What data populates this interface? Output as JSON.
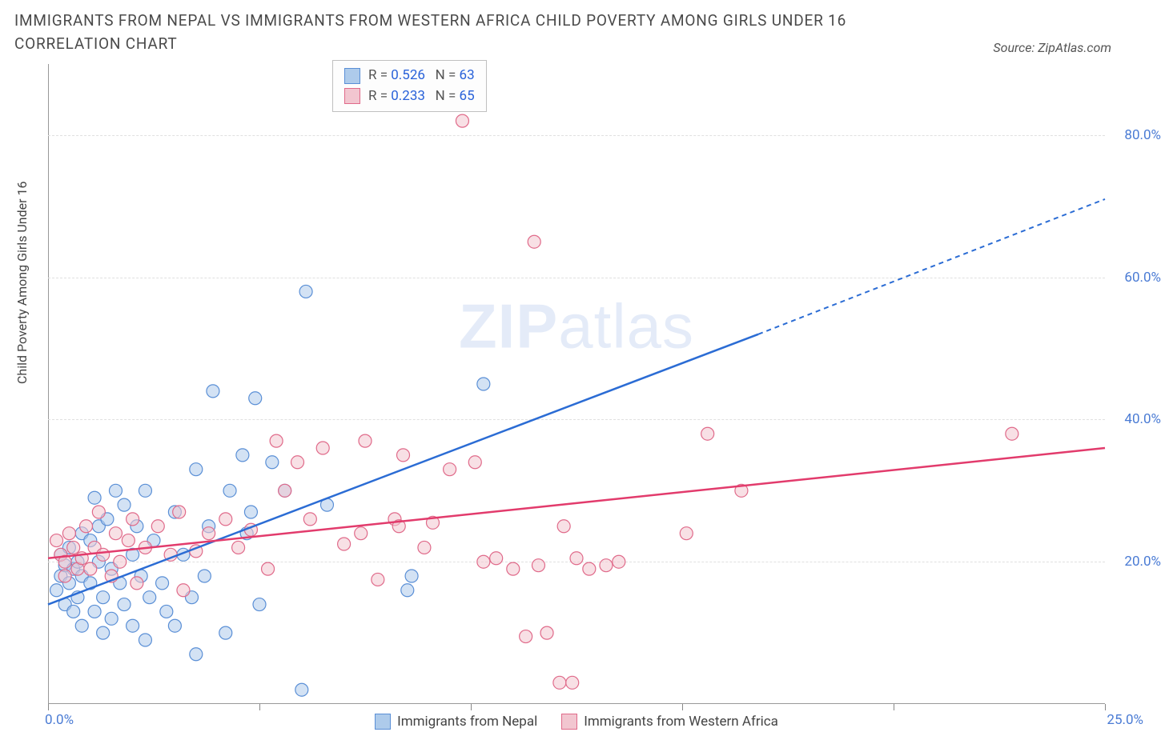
{
  "title": "IMMIGRANTS FROM NEPAL VS IMMIGRANTS FROM WESTERN AFRICA CHILD POVERTY AMONG GIRLS UNDER 16 CORRELATION CHART",
  "source_label": "Source: ZipAtlas.com",
  "y_axis_label": "Child Poverty Among Girls Under 16",
  "watermark": {
    "bold": "ZIP",
    "light": "atlas"
  },
  "chart": {
    "type": "scatter",
    "xlim": [
      0,
      25
    ],
    "ylim": [
      0,
      90
    ],
    "x_ticks": [
      0,
      5,
      10,
      15,
      20,
      25
    ],
    "y_ticks": [
      20,
      40,
      60,
      80
    ],
    "y_tick_labels": [
      "20.0%",
      "40.0%",
      "60.0%",
      "80.0%"
    ],
    "x_corner_left": "0.0%",
    "x_corner_right": "25.0%",
    "grid_color": "#e0e0e0",
    "background_color": "#ffffff",
    "marker_radius": 8,
    "marker_opacity": 0.55,
    "series": [
      {
        "name": "Immigrants from Nepal",
        "color_fill": "#aecbeb",
        "color_stroke": "#5a8fd6",
        "line_color": "#2b6cd4",
        "R": "0.526",
        "N": "63",
        "trend": {
          "x1": 0,
          "y1": 14,
          "x2_solid": 16.8,
          "y2_solid": 52,
          "x2_dash": 25,
          "y2_dash": 71
        },
        "points": [
          [
            0.2,
            16
          ],
          [
            0.3,
            21
          ],
          [
            0.3,
            18
          ],
          [
            0.4,
            19.5
          ],
          [
            0.4,
            14
          ],
          [
            0.5,
            17
          ],
          [
            0.5,
            22
          ],
          [
            0.6,
            19
          ],
          [
            0.6,
            13
          ],
          [
            0.7,
            20
          ],
          [
            0.7,
            15
          ],
          [
            0.8,
            24
          ],
          [
            0.8,
            18
          ],
          [
            0.8,
            11
          ],
          [
            1.0,
            17
          ],
          [
            1.0,
            23
          ],
          [
            1.1,
            29
          ],
          [
            1.1,
            13
          ],
          [
            1.2,
            20
          ],
          [
            1.2,
            25
          ],
          [
            1.3,
            10
          ],
          [
            1.3,
            15
          ],
          [
            1.4,
            26
          ],
          [
            1.5,
            19
          ],
          [
            1.5,
            12
          ],
          [
            1.6,
            30
          ],
          [
            1.7,
            17
          ],
          [
            1.8,
            14
          ],
          [
            1.8,
            28
          ],
          [
            2.0,
            21
          ],
          [
            2.0,
            11
          ],
          [
            2.1,
            25
          ],
          [
            2.2,
            18
          ],
          [
            2.3,
            30
          ],
          [
            2.3,
            9
          ],
          [
            2.4,
            15
          ],
          [
            2.5,
            23
          ],
          [
            2.7,
            17
          ],
          [
            2.8,
            13
          ],
          [
            3.0,
            11
          ],
          [
            3.0,
            27
          ],
          [
            3.2,
            21
          ],
          [
            3.4,
            15
          ],
          [
            3.5,
            7
          ],
          [
            3.5,
            33
          ],
          [
            3.7,
            18
          ],
          [
            3.8,
            25
          ],
          [
            3.9,
            44
          ],
          [
            4.2,
            10
          ],
          [
            4.3,
            30
          ],
          [
            4.6,
            35
          ],
          [
            4.7,
            24
          ],
          [
            4.8,
            27
          ],
          [
            4.9,
            43
          ],
          [
            5.0,
            14
          ],
          [
            5.3,
            34
          ],
          [
            5.6,
            30
          ],
          [
            6.0,
            2
          ],
          [
            6.1,
            58
          ],
          [
            6.6,
            28
          ],
          [
            8.5,
            16
          ],
          [
            8.6,
            18
          ],
          [
            10.3,
            45
          ]
        ]
      },
      {
        "name": "Immigrants from Western Africa",
        "color_fill": "#f2c6d0",
        "color_stroke": "#e06a8a",
        "line_color": "#e23b6c",
        "R": "0.233",
        "N": "65",
        "trend": {
          "x1": 0,
          "y1": 20.5,
          "x2_solid": 25,
          "y2_solid": 36,
          "x2_dash": 25,
          "y2_dash": 36
        },
        "points": [
          [
            0.2,
            23
          ],
          [
            0.3,
            21
          ],
          [
            0.4,
            20
          ],
          [
            0.4,
            18
          ],
          [
            0.5,
            24
          ],
          [
            0.6,
            22
          ],
          [
            0.7,
            19
          ],
          [
            0.8,
            20.5
          ],
          [
            0.9,
            25
          ],
          [
            1.0,
            19
          ],
          [
            1.1,
            22
          ],
          [
            1.2,
            27
          ],
          [
            1.3,
            21
          ],
          [
            1.5,
            18
          ],
          [
            1.6,
            24
          ],
          [
            1.7,
            20
          ],
          [
            1.9,
            23
          ],
          [
            2.0,
            26
          ],
          [
            2.1,
            17
          ],
          [
            2.3,
            22
          ],
          [
            2.6,
            25
          ],
          [
            2.9,
            21
          ],
          [
            3.1,
            27
          ],
          [
            3.2,
            16
          ],
          [
            3.5,
            21.5
          ],
          [
            3.8,
            24
          ],
          [
            4.2,
            26
          ],
          [
            4.5,
            22
          ],
          [
            4.8,
            24.5
          ],
          [
            5.2,
            19
          ],
          [
            5.4,
            37
          ],
          [
            5.6,
            30
          ],
          [
            5.9,
            34
          ],
          [
            6.2,
            26
          ],
          [
            6.5,
            36
          ],
          [
            7.0,
            22.5
          ],
          [
            7.4,
            24
          ],
          [
            7.5,
            37
          ],
          [
            7.8,
            17.5
          ],
          [
            8.2,
            26
          ],
          [
            8.3,
            25
          ],
          [
            8.4,
            35
          ],
          [
            8.9,
            22
          ],
          [
            9.1,
            25.5
          ],
          [
            9.5,
            33
          ],
          [
            10.1,
            34
          ],
          [
            10.3,
            20
          ],
          [
            10.6,
            20.5
          ],
          [
            11.0,
            19
          ],
          [
            11.3,
            9.5
          ],
          [
            11.5,
            65
          ],
          [
            11.6,
            19.5
          ],
          [
            11.8,
            10
          ],
          [
            12.1,
            3
          ],
          [
            12.2,
            25
          ],
          [
            12.5,
            20.5
          ],
          [
            12.8,
            19
          ],
          [
            13.2,
            19.5
          ],
          [
            13.5,
            20
          ],
          [
            15.1,
            24
          ],
          [
            15.6,
            38
          ],
          [
            16.4,
            30
          ],
          [
            22.8,
            38
          ],
          [
            9.8,
            82
          ],
          [
            12.4,
            3
          ]
        ]
      }
    ]
  },
  "legend_bottom": [
    {
      "label": "Immigrants from Nepal",
      "fill": "#aecbeb",
      "stroke": "#5a8fd6"
    },
    {
      "label": "Immigrants from Western Africa",
      "fill": "#f2c6d0",
      "stroke": "#e06a8a"
    }
  ]
}
